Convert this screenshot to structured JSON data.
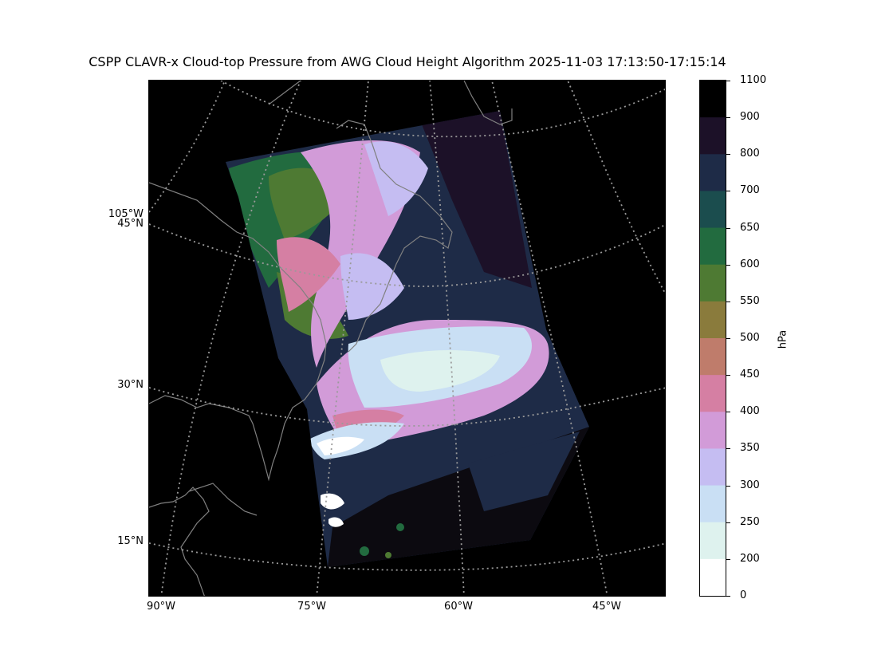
{
  "title": "CSPP CLAVR-x Cloud-top Pressure from AWG Cloud Height Algorithm 2025-11-03 17:13:50-17:15:14",
  "map": {
    "lat_labels": [
      "105°W",
      "45°N",
      "30°N",
      "15°N"
    ],
    "lon_labels": [
      "90°W",
      "75°W",
      "60°W",
      "45°W"
    ],
    "background_color": "#000000",
    "coastline_color": "#808080",
    "gridline_color": "#9a9a9a",
    "gridlines": "dotted"
  },
  "colorbar": {
    "unit": "hPa",
    "tick_labels": [
      "1100",
      "900",
      "800",
      "700",
      "650",
      "600",
      "550",
      "500",
      "450",
      "400",
      "350",
      "300",
      "250",
      "200",
      "0"
    ],
    "bins": [
      {
        "range": "900-1100",
        "color": "#000000"
      },
      {
        "range": "800-900",
        "color": "#1c1128"
      },
      {
        "range": "700-800",
        "color": "#1e2b47"
      },
      {
        "range": "650-700",
        "color": "#1b4d4e"
      },
      {
        "range": "600-650",
        "color": "#226b3f"
      },
      {
        "range": "550-600",
        "color": "#4e7a33"
      },
      {
        "range": "500-550",
        "color": "#8a7b3c"
      },
      {
        "range": "450-500",
        "color": "#bf7c6b"
      },
      {
        "range": "400-450",
        "color": "#d57fa3"
      },
      {
        "range": "350-400",
        "color": "#d29bd8"
      },
      {
        "range": "300-350",
        "color": "#c5bdf2"
      },
      {
        "range": "250-300",
        "color": "#c9dff4"
      },
      {
        "range": "200-250",
        "color": "#def2ee"
      },
      {
        "range": "0-200",
        "color": "#ffffff"
      }
    ]
  }
}
